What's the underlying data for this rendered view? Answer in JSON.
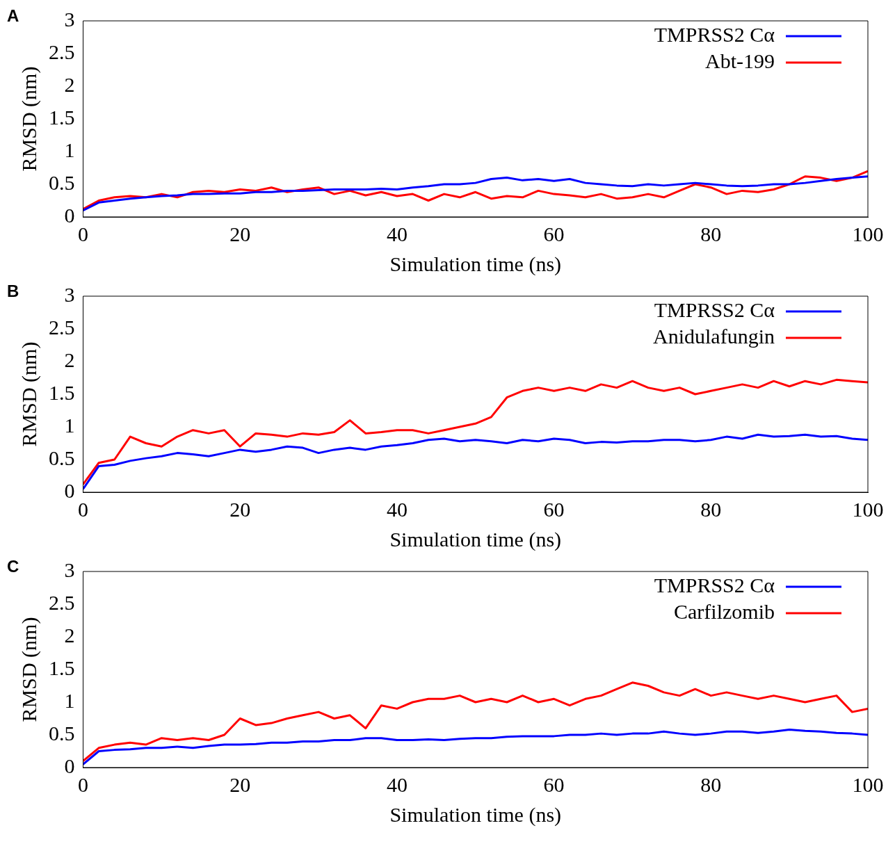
{
  "chart_data": [
    {
      "type": "line",
      "title": "A",
      "xlabel": "Simulation time (ns)",
      "ylabel": "RMSD (nm)",
      "x": [
        0,
        2,
        4,
        6,
        8,
        10,
        12,
        14,
        16,
        18,
        20,
        22,
        24,
        26,
        28,
        30,
        32,
        34,
        36,
        38,
        40,
        42,
        44,
        46,
        48,
        50,
        52,
        54,
        56,
        58,
        60,
        62,
        64,
        66,
        68,
        70,
        72,
        74,
        76,
        78,
        80,
        82,
        84,
        86,
        88,
        90,
        92,
        94,
        96,
        98,
        100
      ],
      "xlim": [
        0,
        100
      ],
      "xticks": [
        0,
        20,
        40,
        60,
        80,
        100
      ],
      "ylim": [
        0,
        3
      ],
      "yticks": [
        0,
        0.5,
        1,
        1.5,
        2,
        2.5,
        3
      ],
      "grid": false,
      "legend": "top right",
      "marker": "none",
      "line_style": "solid",
      "series": [
        {
          "name": "TMPRSS2 Cα",
          "color": "#0000ff",
          "values": [
            0.1,
            0.22,
            0.25,
            0.28,
            0.3,
            0.32,
            0.33,
            0.35,
            0.35,
            0.36,
            0.36,
            0.38,
            0.38,
            0.4,
            0.4,
            0.41,
            0.42,
            0.42,
            0.42,
            0.43,
            0.42,
            0.45,
            0.47,
            0.5,
            0.5,
            0.52,
            0.58,
            0.6,
            0.56,
            0.58,
            0.55,
            0.58,
            0.52,
            0.5,
            0.48,
            0.47,
            0.5,
            0.48,
            0.5,
            0.52,
            0.5,
            0.48,
            0.47,
            0.48,
            0.5,
            0.5,
            0.52,
            0.55,
            0.58,
            0.6,
            0.62
          ]
        },
        {
          "name": "Abt-199",
          "color": "#ff0000",
          "values": [
            0.12,
            0.25,
            0.3,
            0.32,
            0.3,
            0.35,
            0.3,
            0.38,
            0.4,
            0.38,
            0.42,
            0.4,
            0.45,
            0.38,
            0.42,
            0.45,
            0.35,
            0.4,
            0.33,
            0.38,
            0.32,
            0.35,
            0.25,
            0.35,
            0.3,
            0.38,
            0.28,
            0.32,
            0.3,
            0.4,
            0.35,
            0.33,
            0.3,
            0.35,
            0.28,
            0.3,
            0.35,
            0.3,
            0.4,
            0.5,
            0.45,
            0.35,
            0.4,
            0.38,
            0.42,
            0.5,
            0.62,
            0.6,
            0.55,
            0.6,
            0.7
          ]
        }
      ]
    },
    {
      "type": "line",
      "title": "B",
      "xlabel": "Simulation time (ns)",
      "ylabel": "RMSD (nm)",
      "x": [
        0,
        2,
        4,
        6,
        8,
        10,
        12,
        14,
        16,
        18,
        20,
        22,
        24,
        26,
        28,
        30,
        32,
        34,
        36,
        38,
        40,
        42,
        44,
        46,
        48,
        50,
        52,
        54,
        56,
        58,
        60,
        62,
        64,
        66,
        68,
        70,
        72,
        74,
        76,
        78,
        80,
        82,
        84,
        86,
        88,
        90,
        92,
        94,
        96,
        98,
        100
      ],
      "xlim": [
        0,
        100
      ],
      "xticks": [
        0,
        20,
        40,
        60,
        80,
        100
      ],
      "ylim": [
        0,
        3
      ],
      "yticks": [
        0,
        0.5,
        1,
        1.5,
        2,
        2.5,
        3
      ],
      "grid": false,
      "legend": "top right",
      "marker": "none",
      "line_style": "solid",
      "series": [
        {
          "name": "TMPRSS2 Cα",
          "color": "#0000ff",
          "values": [
            0.05,
            0.4,
            0.42,
            0.48,
            0.52,
            0.55,
            0.6,
            0.58,
            0.55,
            0.6,
            0.65,
            0.62,
            0.65,
            0.7,
            0.68,
            0.6,
            0.65,
            0.68,
            0.65,
            0.7,
            0.72,
            0.75,
            0.8,
            0.82,
            0.78,
            0.8,
            0.78,
            0.75,
            0.8,
            0.78,
            0.82,
            0.8,
            0.75,
            0.77,
            0.76,
            0.78,
            0.78,
            0.8,
            0.8,
            0.78,
            0.8,
            0.85,
            0.82,
            0.88,
            0.85,
            0.86,
            0.88,
            0.85,
            0.86,
            0.82,
            0.8
          ]
        },
        {
          "name": "Anidulafungin",
          "color": "#ff0000",
          "values": [
            0.12,
            0.45,
            0.5,
            0.85,
            0.75,
            0.7,
            0.85,
            0.95,
            0.9,
            0.95,
            0.7,
            0.9,
            0.88,
            0.85,
            0.9,
            0.88,
            0.92,
            1.1,
            0.9,
            0.92,
            0.95,
            0.95,
            0.9,
            0.95,
            1.0,
            1.05,
            1.15,
            1.45,
            1.55,
            1.6,
            1.55,
            1.6,
            1.55,
            1.65,
            1.6,
            1.7,
            1.6,
            1.55,
            1.6,
            1.5,
            1.55,
            1.6,
            1.65,
            1.6,
            1.7,
            1.62,
            1.7,
            1.65,
            1.72,
            1.7,
            1.68
          ]
        }
      ]
    },
    {
      "type": "line",
      "title": "C",
      "xlabel": "Simulation time (ns)",
      "ylabel": "RMSD (nm)",
      "x": [
        0,
        2,
        4,
        6,
        8,
        10,
        12,
        14,
        16,
        18,
        20,
        22,
        24,
        26,
        28,
        30,
        32,
        34,
        36,
        38,
        40,
        42,
        44,
        46,
        48,
        50,
        52,
        54,
        56,
        58,
        60,
        62,
        64,
        66,
        68,
        70,
        72,
        74,
        76,
        78,
        80,
        82,
        84,
        86,
        88,
        90,
        92,
        94,
        96,
        98,
        100
      ],
      "xlim": [
        0,
        100
      ],
      "xticks": [
        0,
        20,
        40,
        60,
        80,
        100
      ],
      "ylim": [
        0,
        3
      ],
      "yticks": [
        0,
        0.5,
        1,
        1.5,
        2,
        2.5,
        3
      ],
      "grid": false,
      "legend": "top right",
      "marker": "none",
      "line_style": "solid",
      "series": [
        {
          "name": "TMPRSS2 Cα",
          "color": "#0000ff",
          "values": [
            0.05,
            0.25,
            0.27,
            0.28,
            0.3,
            0.3,
            0.32,
            0.3,
            0.33,
            0.35,
            0.35,
            0.36,
            0.38,
            0.38,
            0.4,
            0.4,
            0.42,
            0.42,
            0.45,
            0.45,
            0.42,
            0.42,
            0.43,
            0.42,
            0.44,
            0.45,
            0.45,
            0.47,
            0.48,
            0.48,
            0.48,
            0.5,
            0.5,
            0.52,
            0.5,
            0.52,
            0.52,
            0.55,
            0.52,
            0.5,
            0.52,
            0.55,
            0.55,
            0.53,
            0.55,
            0.58,
            0.56,
            0.55,
            0.53,
            0.52,
            0.5
          ]
        },
        {
          "name": "Carfilzomib",
          "color": "#ff0000",
          "values": [
            0.1,
            0.3,
            0.35,
            0.38,
            0.35,
            0.45,
            0.42,
            0.45,
            0.42,
            0.5,
            0.75,
            0.65,
            0.68,
            0.75,
            0.8,
            0.85,
            0.75,
            0.8,
            0.6,
            0.95,
            0.9,
            1.0,
            1.05,
            1.05,
            1.1,
            1.0,
            1.05,
            1.0,
            1.1,
            1.0,
            1.05,
            0.95,
            1.05,
            1.1,
            1.2,
            1.3,
            1.25,
            1.15,
            1.1,
            1.2,
            1.1,
            1.15,
            1.1,
            1.05,
            1.1,
            1.05,
            1.0,
            1.05,
            1.1,
            0.85,
            0.9
          ]
        }
      ]
    }
  ]
}
